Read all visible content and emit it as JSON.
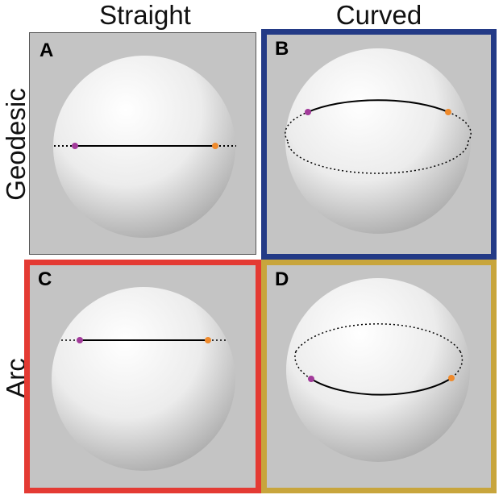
{
  "columns": {
    "straight": "Straight",
    "curved": "Curved"
  },
  "rows": {
    "geodesic": "Geodesic",
    "arc": "Arc"
  },
  "panels": {
    "a": "A",
    "b": "B",
    "c": "C",
    "d": "D"
  },
  "colors": {
    "panel_background": "#c4c4c4",
    "frame_a": "#555555",
    "frame_b": "#233a86",
    "frame_c": "#e43a33",
    "frame_d": "#c8a53c",
    "point_start": "#a23a9a",
    "point_end": "#ef8a2c"
  }
}
